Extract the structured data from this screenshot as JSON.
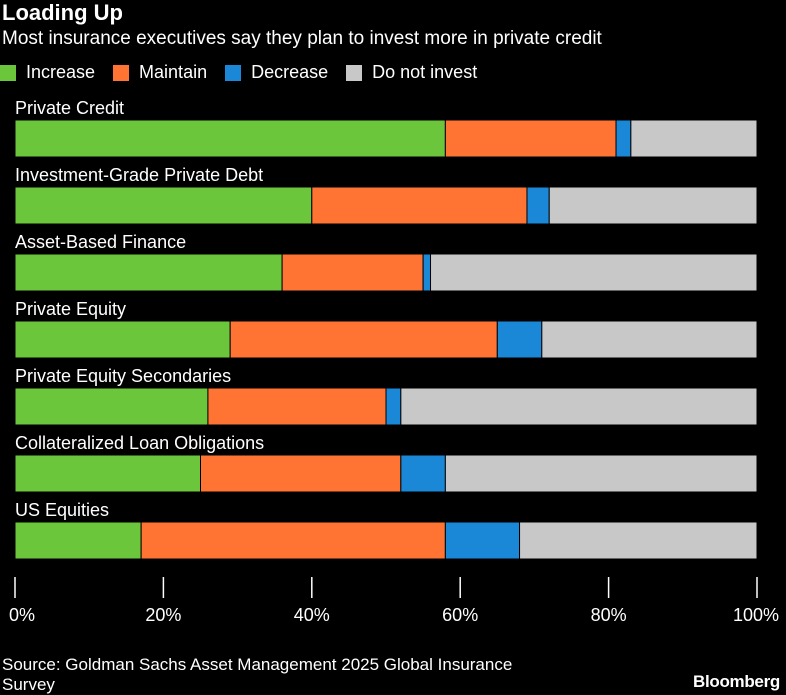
{
  "title": "Loading Up",
  "subtitle": "Most insurance executives say they plan to invest more in private credit",
  "source": "Source: Goldman Sachs Asset Management 2025 Global Insurance Survey",
  "brand": "Bloomberg",
  "colors": {
    "Increase": "#6cc63c",
    "Maintain": "#ff7333",
    "Decrease": "#1a88d6",
    "Do not invest": "#c8c8c8"
  },
  "chart_data": {
    "type": "bar",
    "orientation": "horizontal",
    "stacked": true,
    "title": "Loading Up",
    "subtitle": "Most insurance executives say they plan to invest more in private credit",
    "categories": [
      "Private Credit",
      "Investment-Grade Private Debt",
      "Asset-Based Finance",
      "Private Equity",
      "Private Equity Secondaries",
      "Collateralized Loan Obligations",
      "US Equities"
    ],
    "series": [
      {
        "name": "Increase",
        "values": [
          58,
          40,
          36,
          29,
          26,
          25,
          17
        ]
      },
      {
        "name": "Maintain",
        "values": [
          23,
          29,
          19,
          36,
          24,
          27,
          41
        ]
      },
      {
        "name": "Decrease",
        "values": [
          2,
          3,
          1,
          6,
          2,
          6,
          10
        ]
      },
      {
        "name": "Do not invest",
        "values": [
          17,
          28,
          44,
          29,
          48,
          42,
          32
        ]
      }
    ],
    "xlim": [
      0,
      100
    ],
    "xticks": [
      "0%",
      "20%",
      "40%",
      "60%",
      "80%",
      "100%"
    ],
    "legend_position": "top",
    "grid": false
  }
}
